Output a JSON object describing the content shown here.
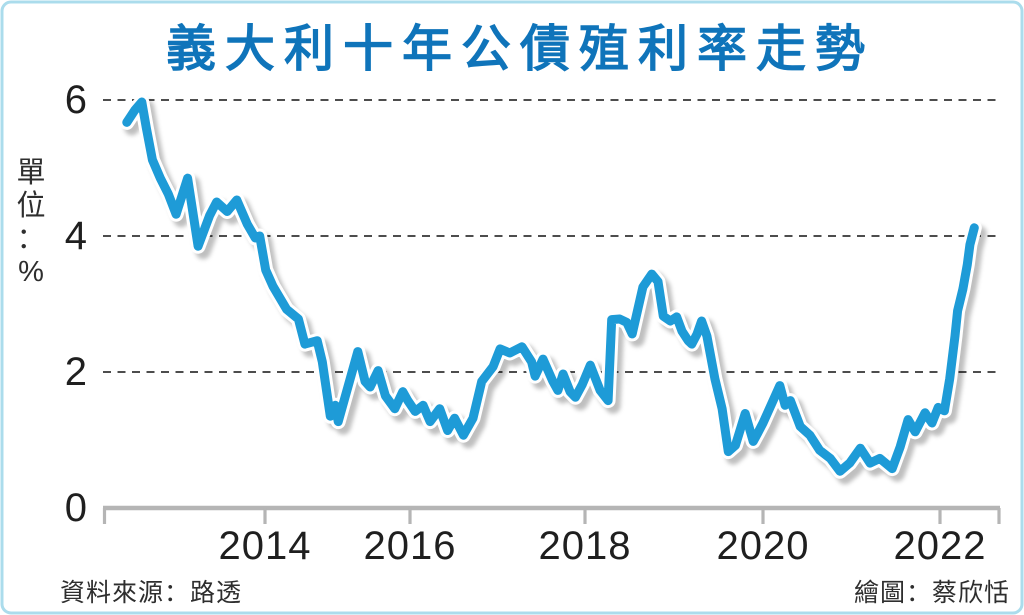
{
  "footer": {
    "source": "資料來源：路透",
    "credit": "繪圖：蔡欣恬"
  },
  "chart_data": {
    "type": "line",
    "title": "義大利十年公債殖利率走勢",
    "subtitle": "",
    "xlabel": "",
    "ylabel": "單位：%",
    "x_ticks": [
      2014,
      2016,
      2018,
      2020,
      2022
    ],
    "y_ticks": [
      0,
      2,
      4,
      6
    ],
    "xlim": [
      2012.3,
      2022.7
    ],
    "ylim": [
      0,
      6.2
    ],
    "grid": "horizontal-dashed",
    "legend": "none",
    "series": [
      {
        "name": "義大利十年公債殖利率(%)",
        "points": [
          [
            2012.43,
            5.67
          ],
          [
            2012.52,
            5.85
          ],
          [
            2012.6,
            5.97
          ],
          [
            2012.65,
            5.6
          ],
          [
            2012.72,
            5.12
          ],
          [
            2012.81,
            4.85
          ],
          [
            2012.9,
            4.62
          ],
          [
            2012.99,
            4.32
          ],
          [
            2013.12,
            4.85
          ],
          [
            2013.24,
            3.85
          ],
          [
            2013.37,
            4.3
          ],
          [
            2013.45,
            4.5
          ],
          [
            2013.57,
            4.36
          ],
          [
            2013.68,
            4.53
          ],
          [
            2013.8,
            4.17
          ],
          [
            2013.89,
            3.97
          ],
          [
            2013.94,
            4.0
          ],
          [
            2014.01,
            3.5
          ],
          [
            2014.11,
            3.26
          ],
          [
            2014.3,
            2.92
          ],
          [
            2014.46,
            2.78
          ],
          [
            2014.55,
            2.41
          ],
          [
            2014.72,
            2.46
          ],
          [
            2014.79,
            2.15
          ],
          [
            2014.9,
            1.35
          ],
          [
            2014.97,
            1.51
          ],
          [
            2015.01,
            1.27
          ],
          [
            2015.28,
            2.3
          ],
          [
            2015.38,
            1.86
          ],
          [
            2015.45,
            1.78
          ],
          [
            2015.56,
            2.02
          ],
          [
            2015.66,
            1.65
          ],
          [
            2015.79,
            1.46
          ],
          [
            2015.9,
            1.71
          ],
          [
            2015.97,
            1.58
          ],
          [
            2016.06,
            1.42
          ],
          [
            2016.15,
            1.51
          ],
          [
            2016.23,
            1.27
          ],
          [
            2016.34,
            1.46
          ],
          [
            2016.43,
            1.14
          ],
          [
            2016.51,
            1.32
          ],
          [
            2016.61,
            1.07
          ],
          [
            2016.72,
            1.32
          ],
          [
            2016.82,
            1.86
          ],
          [
            2016.95,
            2.08
          ],
          [
            2017.03,
            2.34
          ],
          [
            2017.14,
            2.28
          ],
          [
            2017.28,
            2.37
          ],
          [
            2017.39,
            2.15
          ],
          [
            2017.43,
            1.94
          ],
          [
            2017.52,
            2.19
          ],
          [
            2017.63,
            1.87
          ],
          [
            2017.69,
            1.73
          ],
          [
            2017.75,
            1.97
          ],
          [
            2017.83,
            1.71
          ],
          [
            2017.89,
            1.63
          ],
          [
            2017.97,
            1.82
          ],
          [
            2018.06,
            2.1
          ],
          [
            2018.17,
            1.73
          ],
          [
            2018.26,
            1.58
          ],
          [
            2018.3,
            2.77
          ],
          [
            2018.39,
            2.78
          ],
          [
            2018.47,
            2.73
          ],
          [
            2018.53,
            2.56
          ],
          [
            2018.65,
            3.25
          ],
          [
            2018.75,
            3.44
          ],
          [
            2018.82,
            3.33
          ],
          [
            2018.88,
            2.82
          ],
          [
            2018.96,
            2.75
          ],
          [
            2019.03,
            2.81
          ],
          [
            2019.09,
            2.6
          ],
          [
            2019.16,
            2.46
          ],
          [
            2019.2,
            2.41
          ],
          [
            2019.26,
            2.56
          ],
          [
            2019.31,
            2.75
          ],
          [
            2019.37,
            2.53
          ],
          [
            2019.46,
            1.9
          ],
          [
            2019.54,
            1.46
          ],
          [
            2019.61,
            0.83
          ],
          [
            2019.69,
            0.92
          ],
          [
            2019.8,
            1.39
          ],
          [
            2019.89,
            0.98
          ],
          [
            2019.94,
            1.1
          ],
          [
            2020.0,
            1.25
          ],
          [
            2020.19,
            1.8
          ],
          [
            2020.25,
            1.51
          ],
          [
            2020.31,
            1.58
          ],
          [
            2020.42,
            1.2
          ],
          [
            2020.53,
            1.07
          ],
          [
            2020.64,
            0.85
          ],
          [
            2020.76,
            0.73
          ],
          [
            2020.87,
            0.54
          ],
          [
            2020.98,
            0.66
          ],
          [
            2021.1,
            0.88
          ],
          [
            2021.21,
            0.66
          ],
          [
            2021.32,
            0.73
          ],
          [
            2021.46,
            0.58
          ],
          [
            2021.55,
            0.9
          ],
          [
            2021.64,
            1.3
          ],
          [
            2021.72,
            1.12
          ],
          [
            2021.83,
            1.4
          ],
          [
            2021.91,
            1.25
          ],
          [
            2021.98,
            1.48
          ],
          [
            2022.05,
            1.43
          ],
          [
            2022.11,
            1.9
          ],
          [
            2022.17,
            2.53
          ],
          [
            2022.2,
            2.9
          ],
          [
            2022.26,
            3.22
          ],
          [
            2022.31,
            3.58
          ],
          [
            2022.34,
            3.87
          ],
          [
            2022.39,
            4.12
          ]
        ]
      }
    ],
    "colors": {
      "title": "#0f74ba",
      "line": "#1e9bd7",
      "line_outline": "#ffffff",
      "grid": "#4d4d4d",
      "axis": "#b5b5b5",
      "text": "#1f1f1f",
      "footer_text": "#2e2e2e",
      "border": "#abdcec",
      "background": "#ffffff"
    }
  }
}
